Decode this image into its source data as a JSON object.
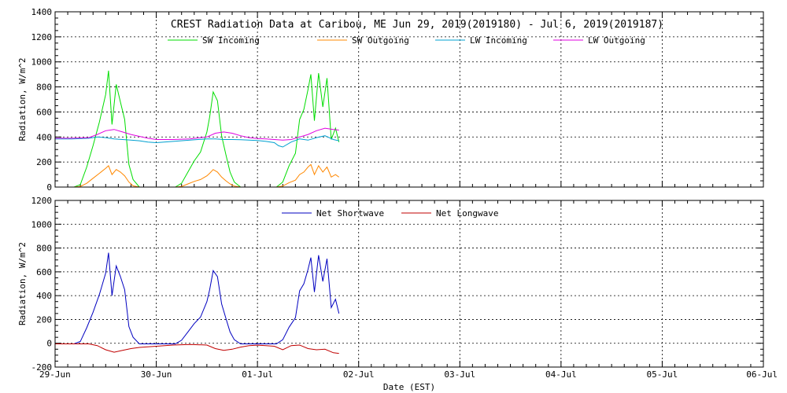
{
  "chart_data": [
    {
      "type": "line",
      "title": "CREST Radiation Data at Caribou, ME   Jun 29, 2019(2019180) - Jul  6, 2019(2019187)",
      "ylabel": "Radiation, W/m^2",
      "ylim": [
        0,
        1400
      ],
      "yticks": [
        0,
        200,
        400,
        600,
        800,
        1000,
        1200,
        1400
      ],
      "xlim": [
        "2019-06-29",
        "2019-07-06"
      ],
      "grid": true,
      "legend": "top",
      "series": [
        {
          "name": "SW Incoming",
          "color": "#00dd00",
          "x": [
            "06-29 04:30",
            "06-29 06:00",
            "06-29 07:30",
            "06-29 09:00",
            "06-29 10:30",
            "06-29 12:00",
            "06-29 12:40",
            "06-29 13:30",
            "06-29 14:30",
            "06-29 15:30",
            "06-29 16:30",
            "06-29 17:30",
            "06-29 18:30",
            "06-29 20:00",
            "06-30 04:30",
            "06-30 06:00",
            "06-30 07:30",
            "06-30 09:00",
            "06-30 10:30",
            "06-30 12:00",
            "06-30 12:40",
            "06-30 13:30",
            "06-30 14:30",
            "06-30 15:30",
            "06-30 16:30",
            "06-30 17:30",
            "06-30 18:30",
            "06-30 20:00",
            "07-01 04:30",
            "07-01 06:00",
            "07-01 07:30",
            "07-01 09:00",
            "07-01 10:00",
            "07-01 11:00",
            "07-01 12:00",
            "07-01 12:40",
            "07-01 13:30",
            "07-01 14:30",
            "07-01 15:30",
            "07-01 16:30",
            "07-01 17:30",
            "07-01 18:30",
            "07-01 19:20"
          ],
          "y": [
            0,
            20,
            160,
            330,
            520,
            740,
            930,
            500,
            820,
            680,
            540,
            180,
            60,
            0,
            0,
            30,
            120,
            210,
            280,
            440,
            560,
            760,
            690,
            410,
            260,
            120,
            40,
            0,
            0,
            40,
            170,
            270,
            540,
            620,
            780,
            900,
            530,
            910,
            640,
            870,
            380,
            470,
            360
          ]
        },
        {
          "name": "SW Outgoing",
          "color": "#ff8800",
          "x": [
            "06-29 04:30",
            "06-29 06:00",
            "06-29 07:30",
            "06-29 09:00",
            "06-29 10:30",
            "06-29 12:00",
            "06-29 12:40",
            "06-29 13:30",
            "06-29 14:30",
            "06-29 15:30",
            "06-29 16:30",
            "06-29 17:30",
            "06-29 18:30",
            "06-29 20:00",
            "06-30 04:30",
            "06-30 06:00",
            "06-30 07:30",
            "06-30 09:00",
            "06-30 10:30",
            "06-30 12:00",
            "06-30 12:40",
            "06-30 13:30",
            "06-30 14:30",
            "06-30 15:30",
            "06-30 16:30",
            "06-30 17:30",
            "06-30 18:30",
            "06-30 20:00",
            "07-01 04:30",
            "07-01 06:00",
            "07-01 07:30",
            "07-01 09:00",
            "07-01 10:00",
            "07-01 11:00",
            "07-01 12:00",
            "07-01 12:40",
            "07-01 13:30",
            "07-01 14:30",
            "07-01 15:30",
            "07-01 16:30",
            "07-01 17:30",
            "07-01 18:30",
            "07-01 19:20"
          ],
          "y": [
            0,
            5,
            30,
            70,
            110,
            150,
            170,
            100,
            140,
            120,
            90,
            40,
            10,
            0,
            0,
            5,
            25,
            45,
            60,
            90,
            110,
            140,
            120,
            80,
            50,
            25,
            8,
            0,
            0,
            8,
            35,
            55,
            100,
            120,
            160,
            180,
            100,
            170,
            120,
            160,
            80,
            100,
            80
          ]
        },
        {
          "name": "LW Incoming",
          "color": "#00a0d0",
          "x": [
            "06-29 00:00",
            "06-29 04:00",
            "06-29 08:00",
            "06-29 10:00",
            "06-29 12:00",
            "06-29 14:00",
            "06-29 16:00",
            "06-29 18:00",
            "06-29 20:00",
            "06-29 22:00",
            "06-30 00:00",
            "06-30 04:00",
            "06-30 08:00",
            "06-30 12:00",
            "06-30 14:00",
            "06-30 16:00",
            "06-30 18:00",
            "06-30 20:00",
            "06-30 22:00",
            "07-01 00:00",
            "07-01 02:00",
            "07-01 04:00",
            "07-01 05:00",
            "07-01 06:00",
            "07-01 08:00",
            "07-01 10:00",
            "07-01 12:00",
            "07-01 14:00",
            "07-01 16:00",
            "07-01 18:00",
            "07-01 19:20"
          ],
          "y": [
            385,
            385,
            390,
            400,
            395,
            385,
            380,
            375,
            370,
            360,
            355,
            365,
            375,
            385,
            385,
            380,
            380,
            378,
            375,
            372,
            365,
            355,
            330,
            320,
            360,
            385,
            375,
            395,
            410,
            380,
            370
          ]
        },
        {
          "name": "LW Outgoing",
          "color": "#e000e0",
          "x": [
            "06-29 00:00",
            "06-29 04:00",
            "06-29 08:00",
            "06-29 10:00",
            "06-29 12:00",
            "06-29 14:00",
            "06-29 16:00",
            "06-29 18:00",
            "06-29 20:00",
            "06-29 22:00",
            "06-30 00:00",
            "06-30 04:00",
            "06-30 08:00",
            "06-30 12:00",
            "06-30 14:00",
            "06-30 16:00",
            "06-30 18:00",
            "06-30 20:00",
            "06-30 22:00",
            "07-01 00:00",
            "07-01 02:00",
            "07-01 04:00",
            "07-01 06:00",
            "07-01 08:00",
            "07-01 10:00",
            "07-01 12:00",
            "07-01 14:00",
            "07-01 16:00",
            "07-01 18:00",
            "07-01 19:20"
          ],
          "y": [
            390,
            390,
            395,
            420,
            450,
            460,
            440,
            420,
            405,
            390,
            380,
            380,
            385,
            400,
            430,
            440,
            430,
            410,
            395,
            388,
            385,
            380,
            375,
            380,
            400,
            420,
            450,
            470,
            460,
            455
          ]
        }
      ]
    },
    {
      "type": "line",
      "xlabel": "Date (EST)",
      "ylabel": "Radiation, W/m^2",
      "ylim": [
        -200,
        1200
      ],
      "yticks": [
        -200,
        0,
        200,
        400,
        600,
        800,
        1000,
        1200
      ],
      "xlim": [
        "2019-06-29",
        "2019-07-06"
      ],
      "xtick_labels": [
        "29-Jun",
        "30-Jun",
        "01-Jul",
        "02-Jul",
        "03-Jul",
        "04-Jul",
        "05-Jul",
        "06-Jul"
      ],
      "grid": true,
      "legend": "top",
      "series": [
        {
          "name": "Net Shortwave",
          "color": "#0000c0",
          "x": [
            "06-29 00:00",
            "06-29 04:30",
            "06-29 06:00",
            "06-29 07:30",
            "06-29 09:00",
            "06-29 10:30",
            "06-29 12:00",
            "06-29 12:40",
            "06-29 13:30",
            "06-29 14:30",
            "06-29 15:30",
            "06-29 16:30",
            "06-29 17:30",
            "06-29 18:30",
            "06-29 20:00",
            "06-30 04:30",
            "06-30 06:00",
            "06-30 07:30",
            "06-30 09:00",
            "06-30 10:30",
            "06-30 12:00",
            "06-30 12:40",
            "06-30 13:30",
            "06-30 14:30",
            "06-30 15:30",
            "06-30 16:30",
            "06-30 17:30",
            "06-30 18:30",
            "06-30 20:00",
            "07-01 04:30",
            "07-01 06:00",
            "07-01 07:30",
            "07-01 09:00",
            "07-01 10:00",
            "07-01 11:00",
            "07-01 12:00",
            "07-01 12:40",
            "07-01 13:30",
            "07-01 14:30",
            "07-01 15:30",
            "07-01 16:30",
            "07-01 17:30",
            "07-01 18:30",
            "07-01 19:20"
          ],
          "y": [
            -5,
            -5,
            15,
            130,
            260,
            410,
            590,
            760,
            400,
            650,
            560,
            450,
            140,
            50,
            -5,
            -5,
            25,
            95,
            165,
            220,
            350,
            450,
            610,
            560,
            330,
            210,
            95,
            30,
            -5,
            -5,
            30,
            135,
            215,
            440,
            500,
            620,
            720,
            430,
            740,
            520,
            710,
            300,
            370,
            250
          ]
        },
        {
          "name": "Net Longwave",
          "color": "#c00000",
          "x": [
            "06-29 00:00",
            "06-29 04:00",
            "06-29 08:00",
            "06-29 10:00",
            "06-29 12:00",
            "06-29 14:00",
            "06-29 16:00",
            "06-29 18:00",
            "06-29 20:00",
            "06-29 22:00",
            "06-30 00:00",
            "06-30 04:00",
            "06-30 08:00",
            "06-30 12:00",
            "06-30 14:00",
            "06-30 16:00",
            "06-30 18:00",
            "06-30 20:00",
            "06-30 22:00",
            "07-01 00:00",
            "07-01 02:00",
            "07-01 04:00",
            "07-01 06:00",
            "07-01 08:00",
            "07-01 10:00",
            "07-01 12:00",
            "07-01 14:00",
            "07-01 16:00",
            "07-01 18:00",
            "07-01 19:20"
          ],
          "y": [
            -5,
            -5,
            -5,
            -20,
            -55,
            -75,
            -60,
            -45,
            -35,
            -30,
            -25,
            -15,
            -10,
            -15,
            -45,
            -60,
            -50,
            -32,
            -20,
            -16,
            -20,
            -25,
            -55,
            -20,
            -15,
            -45,
            -55,
            -50,
            -80,
            -85
          ]
        }
      ]
    }
  ]
}
